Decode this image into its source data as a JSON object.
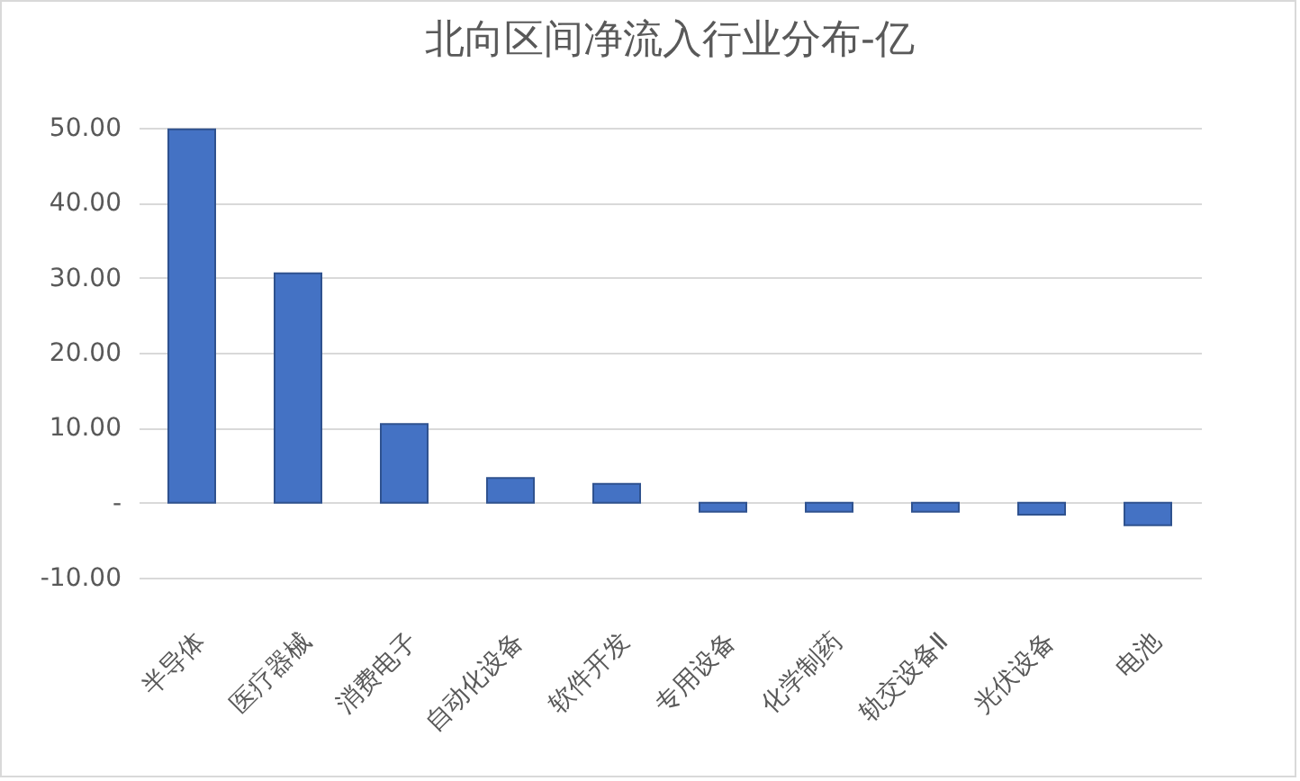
{
  "chart_data": {
    "type": "bar",
    "title": "北向区间净流入行业分布-亿",
    "categories": [
      "半导体",
      "医疗器械",
      "消费电子",
      "自动化设备",
      "软件开发",
      "专用设备",
      "化学制药",
      "轨交设备Ⅱ",
      "光伏设备",
      "电池"
    ],
    "values": [
      49.8,
      30.6,
      10.5,
      3.3,
      2.5,
      -1.2,
      -1.2,
      -1.2,
      -1.6,
      -3.0
    ],
    "color": "#4472c4",
    "ylim": [
      -10,
      50
    ],
    "yticks": [
      {
        "value": -10,
        "label": "-10.00"
      },
      {
        "value": 0,
        "label": "-"
      },
      {
        "value": 10,
        "label": "10.00"
      },
      {
        "value": 20,
        "label": "20.00"
      },
      {
        "value": 30,
        "label": "30.00"
      },
      {
        "value": 40,
        "label": "40.00"
      },
      {
        "value": 50,
        "label": "50.00"
      }
    ],
    "grid": "y"
  }
}
